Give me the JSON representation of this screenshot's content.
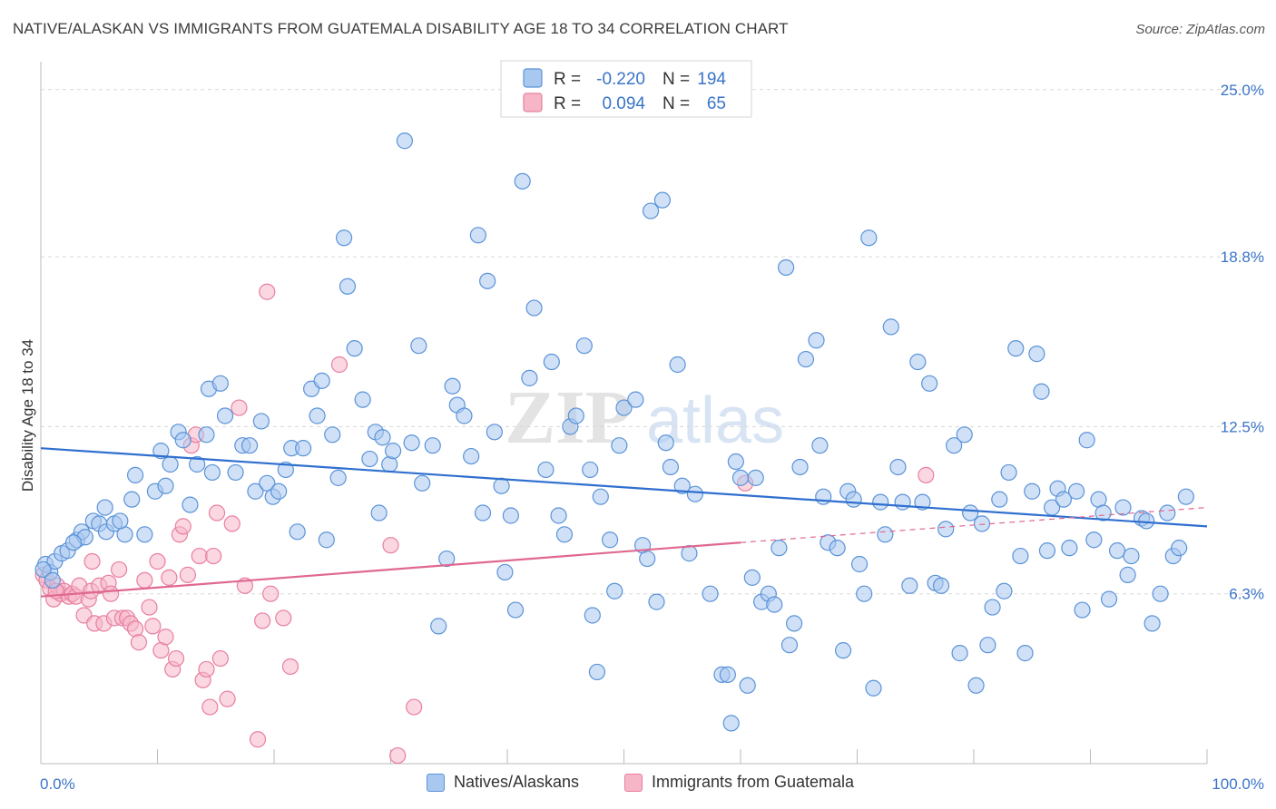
{
  "title": "NATIVE/ALASKAN VS IMMIGRANTS FROM GUATEMALA DISABILITY AGE 18 TO 34 CORRELATION CHART",
  "source": "Source: ZipAtlas.com",
  "watermark": {
    "zip": "ZIP",
    "atlas": "atlas"
  },
  "colors": {
    "blue_fill": "#a9c8f0",
    "blue_stroke": "#5b93d8",
    "blue_line": "#2f6fcf",
    "pink_fill": "#f6b6c8",
    "pink_stroke": "#e87fa0",
    "pink_line": "#e06890",
    "tick_text": "#3a74c9",
    "grid": "#d8d8d8"
  },
  "stats": {
    "r_label": "R =",
    "n_label": "N =",
    "rows": [
      {
        "r": "-0.220",
        "n": "194"
      },
      {
        "r": "0.094",
        "n": "65"
      }
    ]
  },
  "chart_data": {
    "type": "scatter",
    "title": "NATIVE/ALASKAN VS IMMIGRANTS FROM GUATEMALA DISABILITY AGE 18 TO 34 CORRELATION CHART",
    "xlabel": "",
    "ylabel": "Disability Age 18 to 34",
    "xlim": [
      0,
      100
    ],
    "ylim": [
      0,
      25.9
    ],
    "x_tick_labels": [
      "0.0%",
      "100.0%"
    ],
    "y_ticks": [
      6.3,
      12.5,
      18.8,
      25.0
    ],
    "y_tick_labels": [
      "6.3%",
      "12.5%",
      "18.8%",
      "25.0%"
    ],
    "grid": true,
    "legend_position": "bottom-center",
    "series": [
      {
        "name": "Natives/Alaskans",
        "trend": {
          "x": [
            0,
            100
          ],
          "y": [
            11.7,
            8.8
          ]
        },
        "points": [
          [
            0.4,
            7.4
          ],
          [
            0.8,
            7.1
          ],
          [
            1.2,
            7.5
          ],
          [
            1.8,
            7.8
          ],
          [
            2.3,
            7.9
          ],
          [
            3.1,
            8.3
          ],
          [
            3.5,
            8.6
          ],
          [
            3.8,
            8.4
          ],
          [
            4.5,
            9.0
          ],
          [
            5.0,
            8.9
          ],
          [
            5.5,
            9.5
          ],
          [
            5.6,
            8.6
          ],
          [
            6.3,
            8.9
          ],
          [
            7.2,
            8.5
          ],
          [
            7.8,
            9.8
          ],
          [
            8.1,
            10.7
          ],
          [
            8.9,
            8.5
          ],
          [
            9.8,
            10.1
          ],
          [
            10.3,
            11.6
          ],
          [
            10.7,
            10.3
          ],
          [
            11.1,
            11.1
          ],
          [
            11.8,
            12.3
          ],
          [
            12.8,
            9.6
          ],
          [
            13.4,
            11.1
          ],
          [
            14.2,
            12.2
          ],
          [
            14.7,
            10.8
          ],
          [
            14.4,
            13.9
          ],
          [
            15.4,
            14.1
          ],
          [
            15.8,
            12.9
          ],
          [
            16.7,
            10.8
          ],
          [
            17.3,
            11.8
          ],
          [
            17.9,
            11.8
          ],
          [
            18.4,
            10.1
          ],
          [
            18.9,
            12.7
          ],
          [
            19.4,
            10.4
          ],
          [
            19.9,
            9.9
          ],
          [
            20.4,
            10.1
          ],
          [
            21.0,
            10.9
          ],
          [
            21.5,
            11.7
          ],
          [
            22.0,
            8.6
          ],
          [
            22.5,
            11.7
          ],
          [
            23.2,
            13.9
          ],
          [
            23.7,
            12.9
          ],
          [
            24.1,
            14.2
          ],
          [
            24.5,
            8.3
          ],
          [
            25.0,
            12.2
          ],
          [
            25.5,
            10.6
          ],
          [
            26.0,
            19.5
          ],
          [
            26.3,
            17.7
          ],
          [
            26.9,
            15.4
          ],
          [
            27.6,
            13.5
          ],
          [
            28.2,
            11.3
          ],
          [
            28.7,
            12.3
          ],
          [
            29.0,
            9.3
          ],
          [
            29.3,
            12.1
          ],
          [
            29.9,
            11.1
          ],
          [
            30.2,
            11.6
          ],
          [
            31.2,
            23.1
          ],
          [
            31.8,
            11.9
          ],
          [
            32.4,
            15.5
          ],
          [
            32.7,
            10.4
          ],
          [
            33.6,
            11.8
          ],
          [
            34.1,
            5.1
          ],
          [
            34.8,
            7.6
          ],
          [
            35.3,
            14.0
          ],
          [
            35.7,
            13.3
          ],
          [
            36.3,
            12.9
          ],
          [
            36.9,
            11.4
          ],
          [
            37.5,
            19.6
          ],
          [
            37.9,
            9.3
          ],
          [
            38.3,
            17.9
          ],
          [
            38.9,
            12.3
          ],
          [
            39.5,
            10.3
          ],
          [
            39.8,
            7.1
          ],
          [
            40.3,
            9.2
          ],
          [
            40.7,
            5.7
          ],
          [
            41.3,
            21.6
          ],
          [
            41.9,
            14.3
          ],
          [
            42.3,
            16.9
          ],
          [
            43.3,
            10.9
          ],
          [
            43.8,
            14.9
          ],
          [
            44.4,
            9.2
          ],
          [
            44.9,
            8.5
          ],
          [
            45.4,
            12.5
          ],
          [
            45.9,
            12.9
          ],
          [
            46.6,
            15.5
          ],
          [
            47.1,
            10.9
          ],
          [
            47.3,
            5.5
          ],
          [
            47.7,
            3.4
          ],
          [
            48.0,
            9.9
          ],
          [
            48.8,
            8.3
          ],
          [
            49.2,
            6.4
          ],
          [
            49.6,
            11.8
          ],
          [
            50.0,
            13.2
          ],
          [
            51.0,
            13.5
          ],
          [
            51.6,
            8.1
          ],
          [
            52.0,
            7.6
          ],
          [
            52.3,
            20.5
          ],
          [
            52.8,
            6.0
          ],
          [
            53.3,
            20.9
          ],
          [
            53.6,
            11.9
          ],
          [
            54.0,
            11.0
          ],
          [
            54.6,
            14.8
          ],
          [
            55.0,
            10.3
          ],
          [
            55.6,
            7.8
          ],
          [
            56.1,
            10.0
          ],
          [
            57.4,
            6.3
          ],
          [
            58.4,
            3.3
          ],
          [
            58.9,
            3.3
          ],
          [
            59.2,
            1.5
          ],
          [
            59.6,
            11.2
          ],
          [
            60.0,
            10.6
          ],
          [
            60.6,
            2.9
          ],
          [
            61.0,
            6.9
          ],
          [
            61.3,
            10.6
          ],
          [
            61.8,
            6.0
          ],
          [
            62.4,
            6.3
          ],
          [
            62.9,
            5.9
          ],
          [
            63.3,
            8.0
          ],
          [
            63.9,
            18.4
          ],
          [
            64.2,
            4.4
          ],
          [
            64.6,
            5.2
          ],
          [
            65.1,
            11.0
          ],
          [
            65.6,
            15.0
          ],
          [
            66.5,
            15.7
          ],
          [
            66.8,
            11.8
          ],
          [
            67.1,
            9.9
          ],
          [
            67.5,
            8.2
          ],
          [
            68.3,
            8.0
          ],
          [
            68.8,
            4.2
          ],
          [
            69.2,
            10.1
          ],
          [
            69.7,
            9.8
          ],
          [
            70.2,
            7.4
          ],
          [
            70.6,
            6.3
          ],
          [
            71.0,
            19.5
          ],
          [
            71.4,
            2.8
          ],
          [
            72.0,
            9.7
          ],
          [
            72.4,
            8.5
          ],
          [
            72.9,
            16.2
          ],
          [
            73.5,
            11.0
          ],
          [
            73.9,
            9.7
          ],
          [
            74.5,
            6.6
          ],
          [
            75.2,
            14.9
          ],
          [
            75.6,
            9.7
          ],
          [
            76.2,
            14.1
          ],
          [
            76.7,
            6.7
          ],
          [
            77.2,
            6.6
          ],
          [
            77.6,
            8.7
          ],
          [
            78.3,
            11.8
          ],
          [
            78.8,
            4.1
          ],
          [
            79.2,
            12.2
          ],
          [
            79.7,
            9.3
          ],
          [
            80.2,
            2.9
          ],
          [
            80.7,
            8.9
          ],
          [
            81.2,
            4.4
          ],
          [
            81.6,
            5.8
          ],
          [
            82.2,
            9.8
          ],
          [
            82.6,
            6.4
          ],
          [
            83.0,
            10.8
          ],
          [
            83.6,
            15.4
          ],
          [
            84.0,
            7.7
          ],
          [
            84.4,
            4.1
          ],
          [
            85.0,
            10.1
          ],
          [
            85.4,
            15.2
          ],
          [
            85.8,
            13.8
          ],
          [
            86.3,
            7.9
          ],
          [
            86.7,
            9.5
          ],
          [
            87.2,
            10.2
          ],
          [
            87.7,
            9.8
          ],
          [
            88.2,
            8.0
          ],
          [
            88.8,
            10.1
          ],
          [
            89.3,
            5.7
          ],
          [
            89.7,
            12.0
          ],
          [
            90.3,
            8.3
          ],
          [
            90.7,
            9.8
          ],
          [
            91.1,
            9.3
          ],
          [
            91.6,
            6.1
          ],
          [
            92.3,
            7.9
          ],
          [
            92.8,
            9.5
          ],
          [
            93.2,
            7.0
          ],
          [
            93.5,
            7.7
          ],
          [
            94.4,
            9.1
          ],
          [
            94.8,
            9.0
          ],
          [
            95.3,
            5.2
          ],
          [
            96.0,
            6.3
          ],
          [
            96.6,
            9.3
          ],
          [
            97.1,
            7.7
          ],
          [
            97.6,
            8.0
          ],
          [
            98.2,
            9.9
          ],
          [
            0.2,
            7.2
          ],
          [
            1.0,
            6.8
          ],
          [
            2.8,
            8.2
          ],
          [
            6.8,
            9.0
          ],
          [
            12.2,
            12.0
          ]
        ]
      },
      {
        "name": "Immigrants from Guatemala",
        "trend": {
          "x": [
            0,
            60
          ],
          "y": [
            6.2,
            8.2
          ]
        },
        "trend_dashed": {
          "x": [
            60,
            100
          ],
          "y": [
            8.2,
            9.5
          ]
        },
        "points": [
          [
            0.2,
            7.0
          ],
          [
            0.5,
            6.8
          ],
          [
            0.8,
            6.5
          ],
          [
            1.1,
            6.1
          ],
          [
            1.4,
            6.6
          ],
          [
            1.7,
            6.3
          ],
          [
            2.0,
            6.4
          ],
          [
            2.4,
            6.2
          ],
          [
            2.7,
            6.3
          ],
          [
            3.0,
            6.2
          ],
          [
            3.3,
            6.6
          ],
          [
            3.7,
            5.5
          ],
          [
            4.1,
            6.1
          ],
          [
            4.3,
            6.4
          ],
          [
            4.6,
            5.2
          ],
          [
            4.4,
            7.5
          ],
          [
            5.0,
            6.6
          ],
          [
            5.4,
            5.2
          ],
          [
            5.8,
            6.7
          ],
          [
            6.0,
            6.3
          ],
          [
            6.3,
            5.4
          ],
          [
            6.7,
            7.2
          ],
          [
            7.0,
            5.4
          ],
          [
            7.4,
            5.4
          ],
          [
            7.7,
            5.2
          ],
          [
            8.1,
            5.0
          ],
          [
            8.4,
            4.5
          ],
          [
            8.9,
            6.8
          ],
          [
            9.3,
            5.8
          ],
          [
            9.6,
            5.1
          ],
          [
            10.0,
            7.5
          ],
          [
            10.3,
            4.2
          ],
          [
            10.7,
            4.7
          ],
          [
            11.0,
            6.9
          ],
          [
            11.3,
            3.5
          ],
          [
            11.6,
            3.9
          ],
          [
            11.9,
            8.5
          ],
          [
            12.2,
            8.8
          ],
          [
            12.6,
            7.0
          ],
          [
            12.9,
            11.8
          ],
          [
            13.3,
            12.2
          ],
          [
            13.6,
            7.7
          ],
          [
            13.9,
            3.1
          ],
          [
            14.2,
            3.5
          ],
          [
            14.5,
            2.1
          ],
          [
            14.8,
            7.7
          ],
          [
            15.1,
            9.3
          ],
          [
            15.4,
            3.9
          ],
          [
            16.0,
            2.4
          ],
          [
            16.4,
            8.9
          ],
          [
            17.0,
            13.2
          ],
          [
            17.5,
            6.6
          ],
          [
            18.6,
            0.9
          ],
          [
            19.0,
            5.3
          ],
          [
            19.4,
            17.5
          ],
          [
            19.7,
            6.3
          ],
          [
            20.8,
            5.4
          ],
          [
            21.4,
            3.6
          ],
          [
            25.6,
            14.8
          ],
          [
            30.0,
            8.1
          ],
          [
            30.6,
            0.3
          ],
          [
            32.0,
            2.1
          ],
          [
            75.9,
            10.7
          ],
          [
            60.4,
            10.4
          ],
          [
            1.3,
            6.4
          ]
        ]
      }
    ]
  },
  "legend": {
    "items": [
      "Natives/Alaskans",
      "Immigrants from Guatemala"
    ]
  }
}
